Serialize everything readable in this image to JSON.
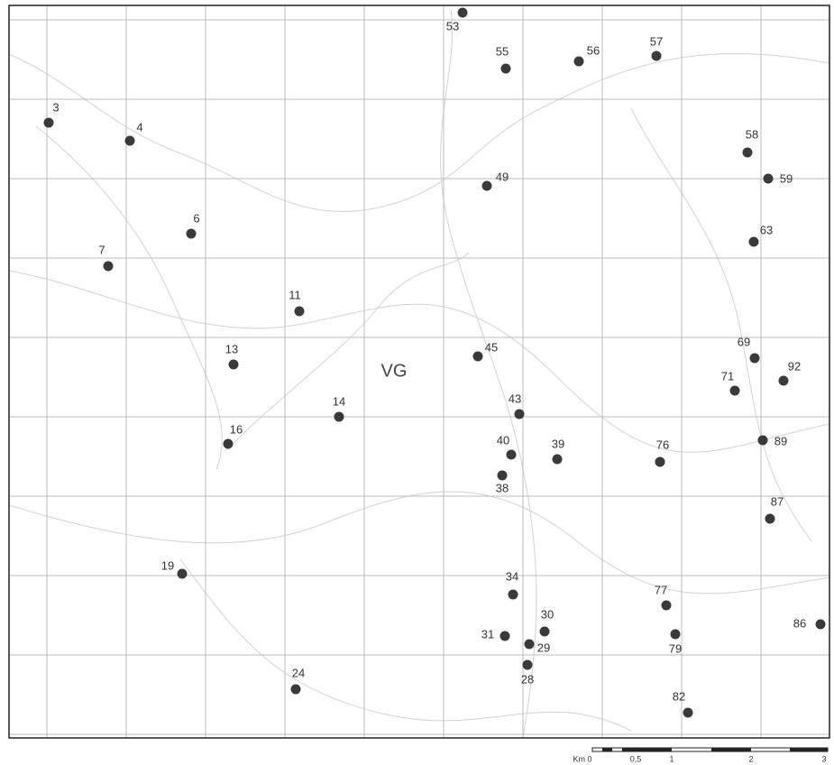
{
  "map": {
    "center_label": "VG",
    "points": [
      "53",
      "55",
      "56",
      "57",
      "3",
      "4",
      "58",
      "59",
      "49",
      "6",
      "63",
      "7",
      "11",
      "69",
      "13",
      "45",
      "92",
      "71",
      "14",
      "43",
      "89",
      "16",
      "40",
      "39",
      "76",
      "38",
      "87",
      "19",
      "34",
      "77",
      "30",
      "86",
      "31",
      "79",
      "29",
      "28",
      "24",
      "82"
    ],
    "scale_labels": [
      "Km 0",
      "0,5",
      "1",
      "2",
      "3"
    ]
  }
}
